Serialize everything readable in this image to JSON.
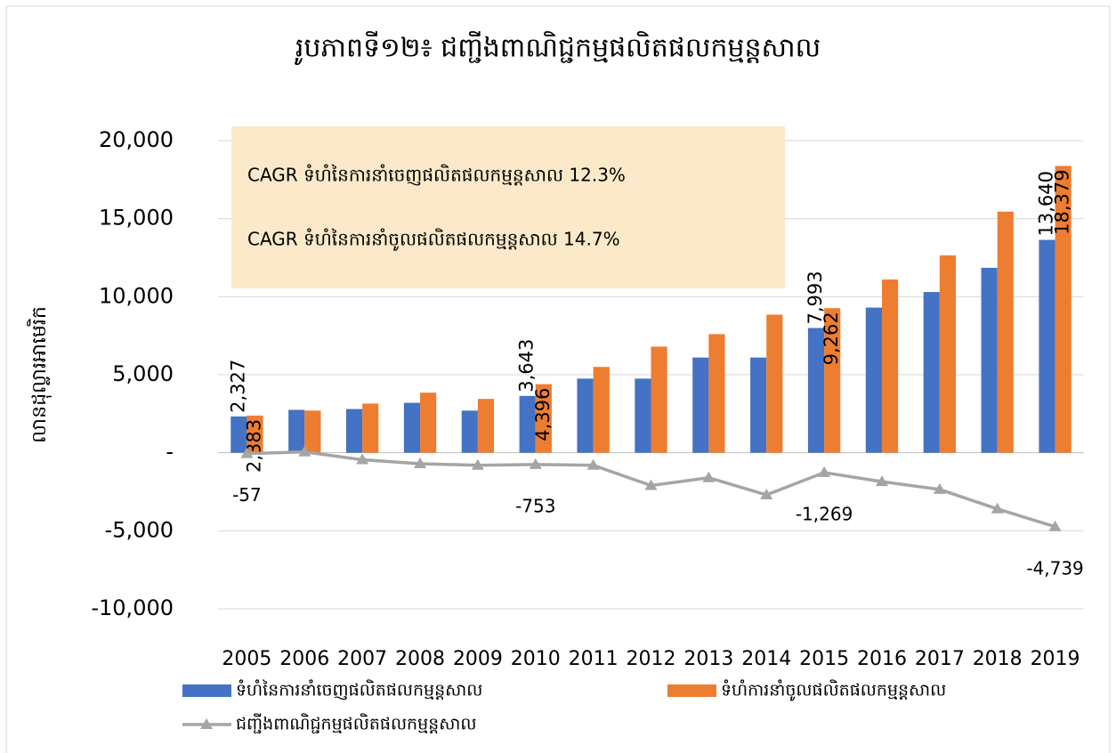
{
  "chart_data": {
    "type": "bar_line",
    "title": "រូបភាពទី១២៖ ជញ្ជីងពាណិជ្ជកម្មផលិតផលកម្មន្តសាល",
    "y_label": "លានដុល្លារអាមេរិក",
    "annotations": [
      "CAGR ទំហំនៃការនាំចេញផលិតផលកម្មន្តសាល 12.3%",
      "CAGR ទំហំនៃការនាំចូលផលិតផលកម្មន្តសាល 14.7%"
    ],
    "categories": [
      "2005",
      "2006",
      "2007",
      "2008",
      "2009",
      "2010",
      "2011",
      "2012",
      "2013",
      "2014",
      "2015",
      "2016",
      "2017",
      "2018",
      "2019"
    ],
    "series": [
      {
        "name": "ទំហំនៃការនាំចេញផលិតផលកម្មន្តសាល",
        "type": "bar",
        "color": "#4472c4",
        "values": [
          2327,
          2750,
          2800,
          3200,
          2700,
          3643,
          4750,
          4750,
          6100,
          6100,
          7993,
          9300,
          10300,
          11850,
          13640
        ],
        "value_labels": [
          "2,327",
          null,
          null,
          null,
          null,
          "3,643",
          null,
          null,
          null,
          null,
          "7,993",
          null,
          null,
          null,
          "13,640"
        ]
      },
      {
        "name": "ទំហំការនាំចូលផលិតផលកម្មន្តសាល",
        "type": "bar",
        "color": "#ed7d31",
        "values": [
          2383,
          2700,
          3150,
          3850,
          3450,
          4396,
          5500,
          6800,
          7600,
          8850,
          9262,
          11100,
          12650,
          15450,
          18379
        ],
        "value_labels": [
          "2,383",
          null,
          null,
          null,
          null,
          "4,396",
          null,
          null,
          null,
          null,
          "9,262",
          null,
          null,
          null,
          "18,379"
        ]
      },
      {
        "name": "ជញ្ជីងពាណិជ្ជកម្មផលិតផលកម្មន្តសាល",
        "type": "line",
        "color": "#a5a5a5",
        "values": [
          -57,
          50,
          -450,
          -700,
          -800,
          -753,
          -800,
          -2100,
          -1600,
          -2700,
          -1269,
          -1850,
          -2350,
          -3600,
          -4739
        ],
        "value_labels": [
          "-57",
          null,
          null,
          null,
          null,
          "-753",
          null,
          null,
          null,
          null,
          "-1,269",
          null,
          null,
          null,
          "-4,739"
        ]
      }
    ],
    "ylim": [
      -10000,
      20000
    ],
    "yticks": [
      {
        "value": -10000,
        "label": "-10,000"
      },
      {
        "value": -5000,
        "label": "-5,000"
      },
      {
        "value": 0,
        "label": "-"
      },
      {
        "value": 5000,
        "label": "5,000"
      },
      {
        "value": 10000,
        "label": "10,000"
      },
      {
        "value": 15000,
        "label": "15,000"
      },
      {
        "value": 20000,
        "label": "20,000"
      }
    ],
    "grid": true
  }
}
